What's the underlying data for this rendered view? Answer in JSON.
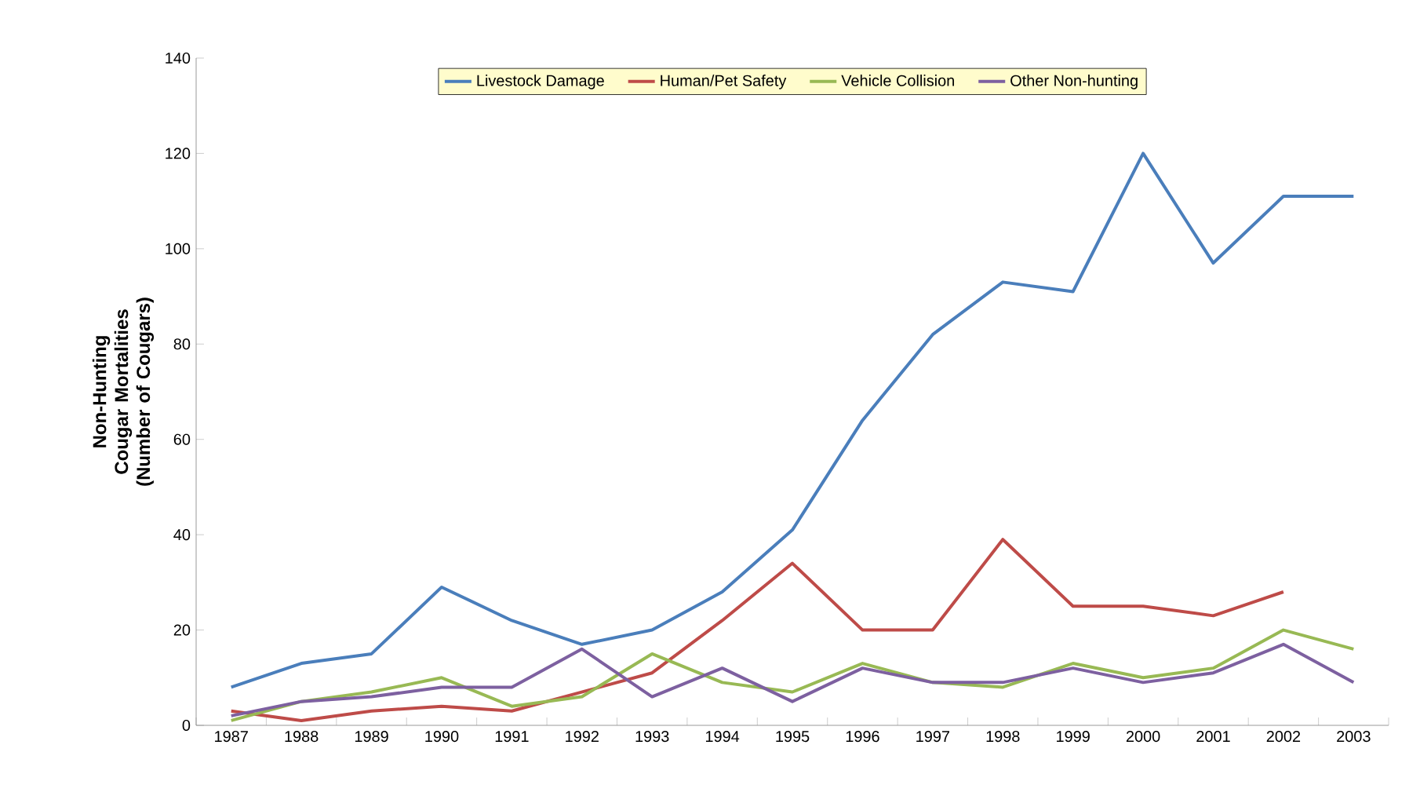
{
  "chart_data": {
    "type": "line",
    "ylabel": "Non-Hunting Cougar Mortalities (Number of Cougars)",
    "categories": [
      "1987",
      "1988",
      "1989",
      "1990",
      "1991",
      "1992",
      "1993",
      "1994",
      "1995",
      "1996",
      "1997",
      "1998",
      "1999",
      "2000",
      "2001",
      "2002",
      "2003"
    ],
    "ylim": [
      0,
      140
    ],
    "yticks": [
      0,
      20,
      40,
      60,
      80,
      100,
      120,
      140
    ],
    "grid": false,
    "legend": "top",
    "marker": "none",
    "line_style": "solid",
    "series": [
      {
        "name": "Livestock Damage",
        "color": "#4a7ebb",
        "values": [
          8,
          13,
          15,
          29,
          22,
          17,
          20,
          28,
          41,
          64,
          82,
          93,
          91,
          120,
          97,
          111,
          111
        ]
      },
      {
        "name": "Human/Pet Safety",
        "color": "#be4b48",
        "values": [
          3,
          1,
          3,
          4,
          3,
          7,
          11,
          22,
          34,
          20,
          20,
          39,
          25,
          25,
          23,
          28,
          null
        ]
      },
      {
        "name": "Vehicle Collision",
        "color": "#98b954",
        "values": [
          1,
          5,
          7,
          10,
          4,
          6,
          15,
          9,
          7,
          13,
          9,
          8,
          13,
          10,
          12,
          20,
          16
        ]
      },
      {
        "name": "Other Non-hunting",
        "color": "#7d60a0",
        "values": [
          2,
          5,
          6,
          8,
          8,
          16,
          6,
          12,
          5,
          12,
          9,
          9,
          12,
          9,
          11,
          17,
          9
        ]
      }
    ]
  }
}
